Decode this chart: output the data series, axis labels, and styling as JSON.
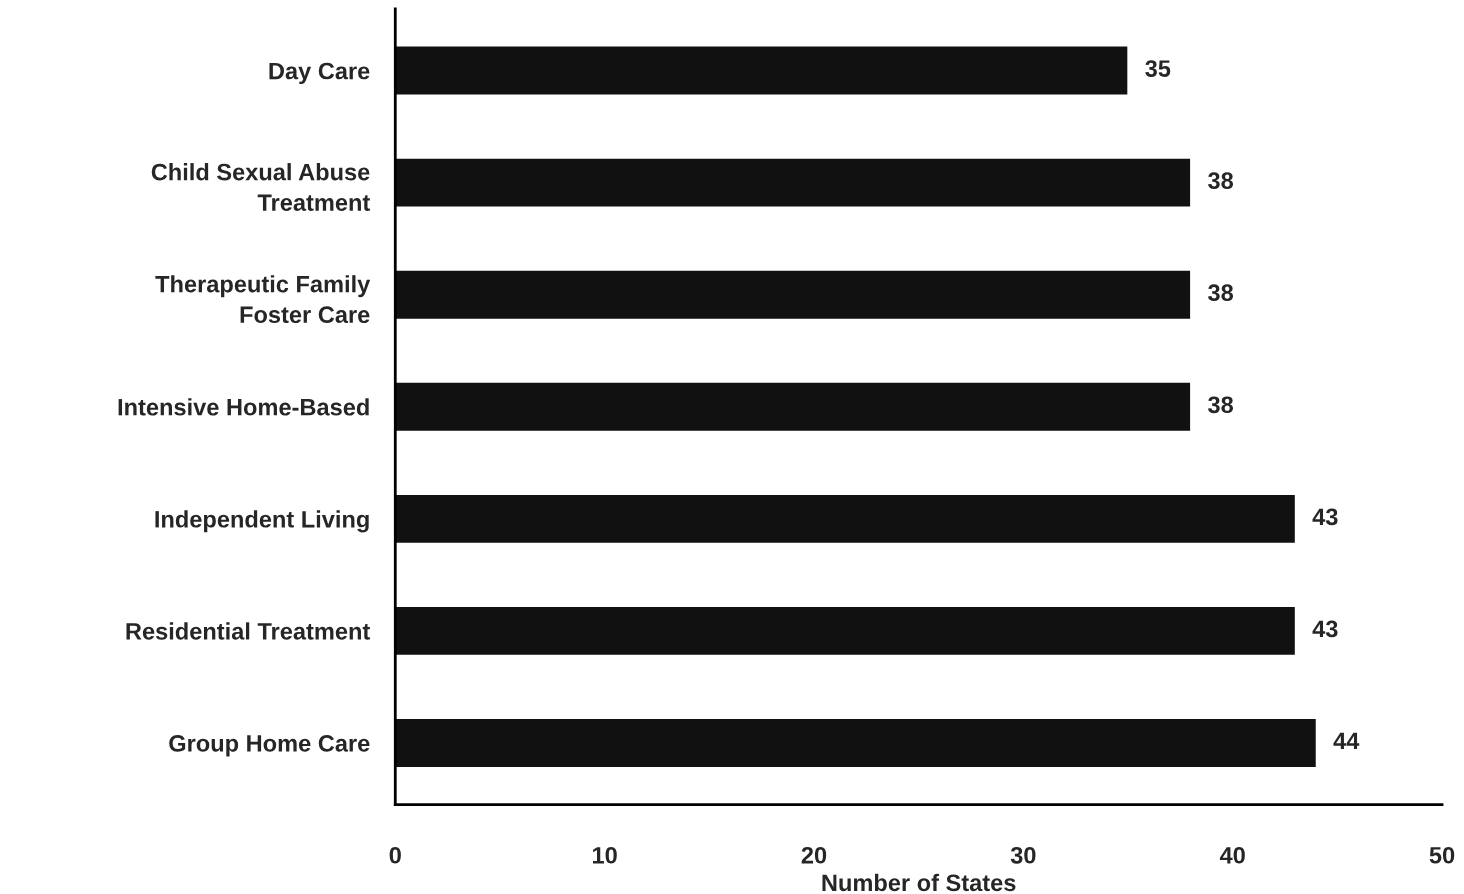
{
  "chart_data": {
    "type": "bar",
    "orientation": "horizontal",
    "xlabel": "Number of States",
    "categories": [
      "Day Care",
      "Child Sexual Abuse\nTreatment",
      "Therapeutic Family\nFoster Care",
      "Intensive Home-Based",
      "Independent Living",
      "Residential Treatment",
      "Group Home Care"
    ],
    "values": [
      35,
      38,
      38,
      38,
      43,
      43,
      44
    ],
    "color": "#111111",
    "xlim": [
      0,
      50
    ],
    "xticks": [
      0,
      10,
      20,
      30,
      40,
      50
    ],
    "data_labels": true,
    "grid": false,
    "legend": false
  }
}
